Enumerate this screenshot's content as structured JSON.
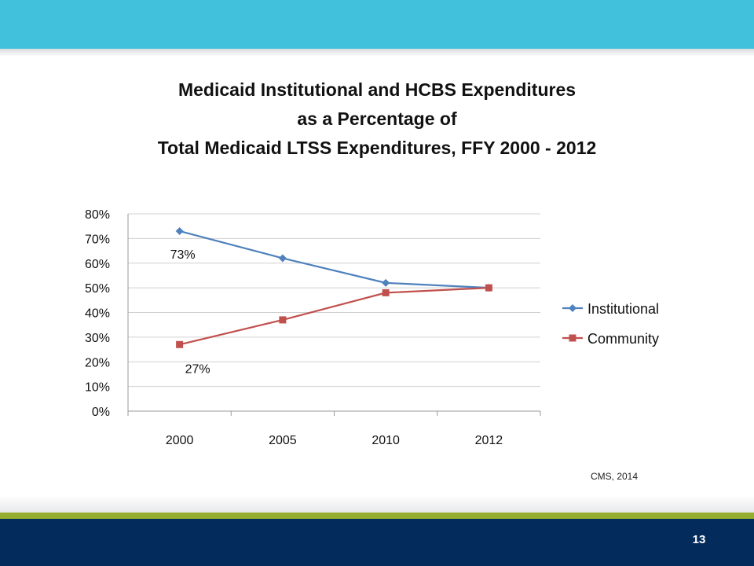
{
  "title": {
    "line1": "Medicaid Institutional and HCBS Expenditures",
    "line2": "as a Percentage of",
    "line3": "Total Medicaid LTSS Expenditures,  FFY 2000 - 2012"
  },
  "chart_data": {
    "type": "line",
    "categories": [
      "2000",
      "2005",
      "2010",
      "2012"
    ],
    "series": [
      {
        "name": "Institutional",
        "values": [
          73,
          62,
          52,
          50
        ],
        "color": "#4f81bd",
        "marker": "diamond"
      },
      {
        "name": "Community",
        "values": [
          27,
          37,
          48,
          50
        ],
        "color": "#c0504d",
        "marker": "square"
      }
    ],
    "yticks": [
      "0%",
      "10%",
      "20%",
      "30%",
      "40%",
      "50%",
      "60%",
      "70%",
      "80%"
    ],
    "ylim": [
      0,
      80
    ],
    "grid": true,
    "legend": "right",
    "annotations": [
      {
        "text": "73%",
        "series": 0,
        "index": 0
      },
      {
        "text": "27%",
        "series": 1,
        "index": 0
      }
    ]
  },
  "source": "CMS, 2014",
  "footer": {
    "page_number": "13"
  }
}
